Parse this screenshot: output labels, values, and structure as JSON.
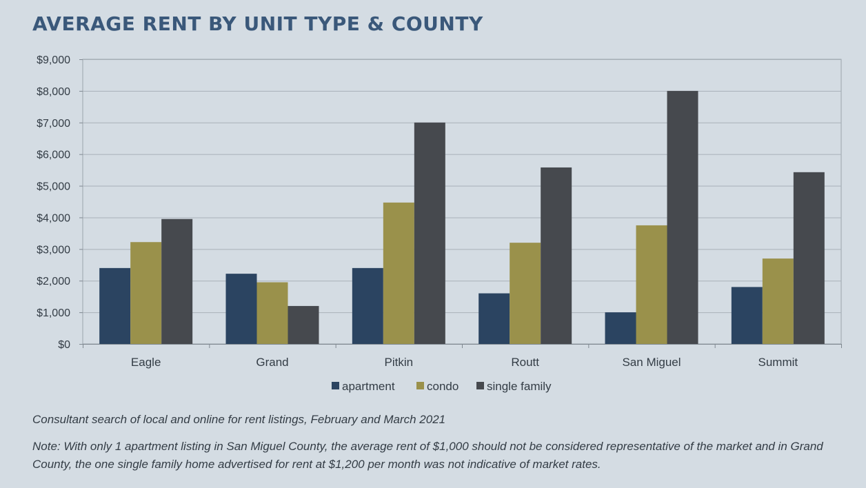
{
  "title": "AVERAGE RENT BY UNIT TYPE & COUNTY",
  "chart_data": {
    "type": "bar",
    "categories": [
      "Eagle",
      "Grand",
      "Pitkin",
      "Routt",
      "San Miguel",
      "Summit"
    ],
    "series": [
      {
        "name": "apartment",
        "color": "#2b4461",
        "values": [
          2400,
          2220,
          2400,
          1600,
          1000,
          1800
        ]
      },
      {
        "name": "condo",
        "color": "#9a914b",
        "values": [
          3220,
          1950,
          4470,
          3200,
          3750,
          2700
        ]
      },
      {
        "name": "single family",
        "color": "#46494e",
        "values": [
          3950,
          1200,
          7000,
          5580,
          8000,
          5430
        ]
      }
    ],
    "ylim": [
      0,
      9000
    ],
    "yticks": [
      0,
      1000,
      2000,
      3000,
      4000,
      5000,
      6000,
      7000,
      8000,
      9000
    ],
    "ytick_labels": [
      "$0",
      "$1,000",
      "$2,000",
      "$3,000",
      "$4,000",
      "$5,000",
      "$6,000",
      "$7,000",
      "$8,000",
      "$9,000"
    ],
    "xlabel": "",
    "ylabel": "",
    "grid": true,
    "legend_position": "bottom"
  },
  "notes": {
    "source": "Consultant search of local and online for rent listings, February and March 2021",
    "footnote": "Note: With only 1 apartment listing in San Miguel County, the average rent of $1,000 should not be considered representative of the market and in Grand County, the one single family home advertised for rent at $1,200 per month was not indicative of market rates."
  }
}
